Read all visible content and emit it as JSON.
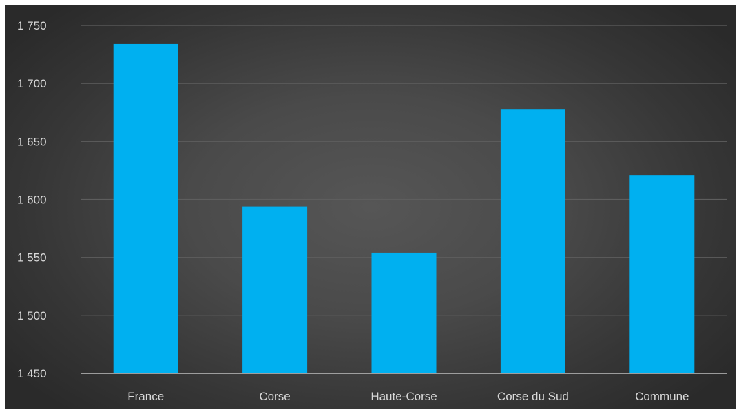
{
  "chart_data": {
    "type": "bar",
    "categories": [
      "France",
      "Corse",
      "Haute-Corse",
      "Corse du Sud",
      "Commune"
    ],
    "values": [
      1734,
      1594,
      1554,
      1678,
      1621
    ],
    "ylim": [
      1450,
      1750
    ],
    "yticks": [
      1450,
      1500,
      1550,
      1600,
      1650,
      1700,
      1750
    ],
    "ytick_labels": [
      "1 450",
      "1 500",
      "1 550",
      "1 600",
      "1 650",
      "1 700",
      "1 750"
    ],
    "title": "",
    "xlabel": "",
    "ylabel": "",
    "grid": true,
    "legend": "none",
    "colors": {
      "bar": "#00b0f0",
      "gridline": "#5e5e5e",
      "axis": "#bfbfbf",
      "text": "#d9d9d9"
    }
  }
}
